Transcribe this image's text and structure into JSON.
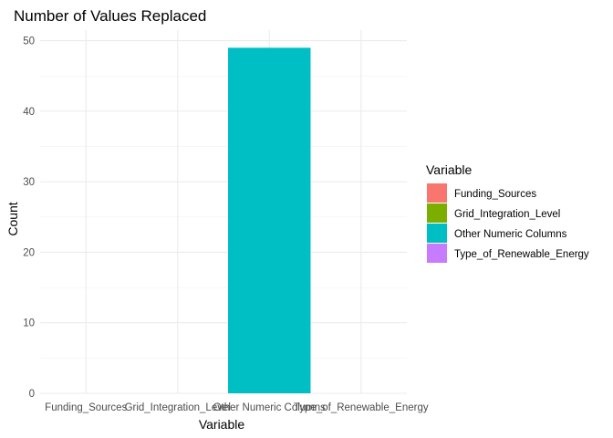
{
  "chart_data": {
    "type": "bar",
    "title": "Number of Values Replaced",
    "xlabel": "Variable",
    "ylabel": "Count",
    "categories": [
      "Funding_Sources",
      "Grid_Integration_Level",
      "Other Numeric Columns",
      "Type_of_Renewable_Energy"
    ],
    "values": [
      0,
      0,
      49,
      0
    ],
    "colors": [
      "#F8766D",
      "#7CAE00",
      "#00BFC4",
      "#C77CFF"
    ],
    "ylim": [
      0,
      51.5
    ],
    "yticks": [
      0,
      10,
      20,
      30,
      40,
      50
    ],
    "grid": true,
    "legend": {
      "title": "Variable",
      "placement": "right",
      "entries": [
        "Funding_Sources",
        "Grid_Integration_Level",
        "Other Numeric Columns",
        "Type_of_Renewable_Energy"
      ]
    }
  }
}
